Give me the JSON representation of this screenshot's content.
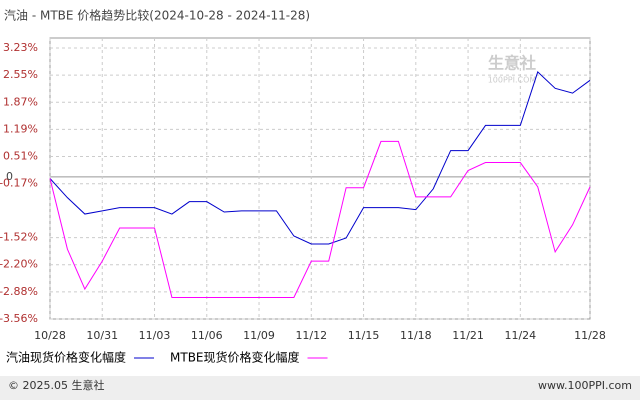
{
  "chart_data": {
    "type": "line",
    "title": "汽油 - MTBE 价格趋势比较(2024-10-28 - 2024-11-28)",
    "categories": [
      "10/28",
      null,
      null,
      "10/31",
      null,
      null,
      "11/03",
      null,
      null,
      "11/06",
      null,
      null,
      "11/09",
      null,
      null,
      "11/12",
      null,
      null,
      "11/15",
      null,
      null,
      "11/18",
      null,
      null,
      "11/21",
      null,
      null,
      "11/24",
      null,
      null,
      null,
      "11/28"
    ],
    "series": [
      {
        "name": "汽油现货价格变化幅度",
        "color": "#0000cc",
        "values": [
          -0.04,
          -0.52,
          -0.93,
          -0.85,
          -0.77,
          -0.77,
          -0.77,
          -0.93,
          -0.62,
          -0.62,
          -0.88,
          -0.85,
          -0.85,
          -0.85,
          -1.48,
          -1.68,
          -1.68,
          -1.53,
          -0.77,
          -0.77,
          -0.77,
          -0.82,
          -0.3,
          0.66,
          0.66,
          1.29,
          1.29,
          1.29,
          2.63,
          2.22,
          2.1,
          2.42
        ]
      },
      {
        "name": "MTBE现货价格变化幅度",
        "color": "#ff00ff",
        "values": [
          -0.04,
          -1.81,
          -2.81,
          -2.11,
          -1.28,
          -1.28,
          -1.28,
          -3.02,
          -3.02,
          -3.02,
          -3.02,
          -3.02,
          -3.02,
          -3.02,
          -3.02,
          -2.11,
          -2.11,
          -0.27,
          -0.27,
          0.89,
          0.89,
          -0.5,
          -0.5,
          -0.5,
          0.16,
          0.36,
          0.36,
          0.36,
          -0.25,
          -1.88,
          -1.2,
          -0.25
        ]
      }
    ],
    "ylim": [
      -3.56,
      3.23
    ],
    "yticks": [
      {
        "value": 3.23,
        "label": "3.23%"
      },
      {
        "value": 2.55,
        "label": "2.55%"
      },
      {
        "value": 1.87,
        "label": "1.87%"
      },
      {
        "value": 1.19,
        "label": "1.19%"
      },
      {
        "value": 0.51,
        "label": "0.51%"
      },
      {
        "value": -0.17,
        "label": "-0.17%"
      },
      0,
      {
        "value": -1.52,
        "label": "-1.52%"
      },
      {
        "value": -2.2,
        "label": "-2.20%"
      },
      {
        "value": -2.88,
        "label": "-2.88%"
      },
      {
        "value": -3.56,
        "label": "-3.56%"
      }
    ],
    "grid": true,
    "watermark": [
      "生意社",
      "100PPI.COM"
    ],
    "footer": {
      "left": "© 2025.05 生意社",
      "right": "www.100PPI.com"
    }
  }
}
